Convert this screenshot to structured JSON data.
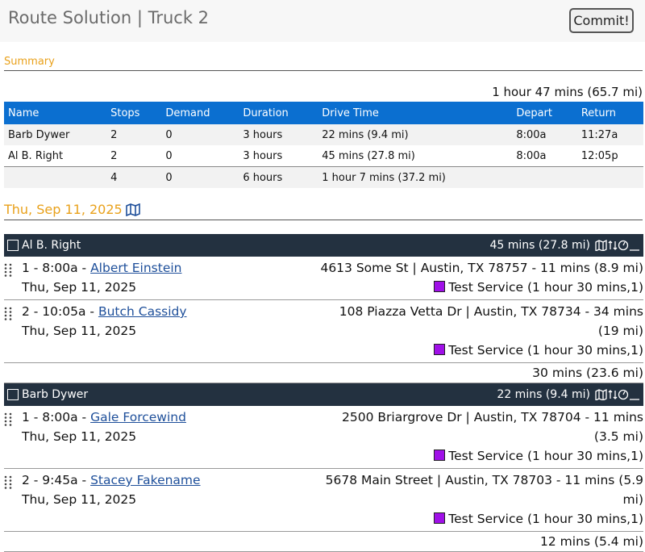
{
  "header": {
    "title": "Route Solution | Truck 2",
    "button": "Commit!"
  },
  "summary": {
    "heading": "Summary",
    "total": "1 hour 47 mins (65.7 mi)",
    "table": {
      "columns": [
        "Name",
        "Stops",
        "Demand",
        "Duration",
        "Drive Time",
        "Depart",
        "Return"
      ],
      "rows": [
        [
          "Barb Dywer",
          "2",
          "0",
          "3 hours",
          "22 mins (9.4 mi)",
          "8:00a",
          "11:27a"
        ],
        [
          "Al B. Right",
          "2",
          "0",
          "3 hours",
          "45 mins (27.8 mi)",
          "8:00a",
          "12:05p"
        ]
      ],
      "totals": {
        "stops": "4",
        "demand": "0",
        "duration": "6 hours",
        "drive_time": "1 hour 7 mins (37.2 mi)"
      }
    }
  },
  "date": "Thu, Sep 11, 2025",
  "routes": [
    {
      "driver": "Al B. Right",
      "summary": "45 mins (27.8 mi)",
      "return": "30 mins (23.6 mi)",
      "stops": [
        {
          "prefix": "1 - 8:00a -",
          "name": "Albert Einstein",
          "date": "Thu, Sep 11, 2025",
          "address": "4613 Some St | Austin, TX 78757 - 11 mins (8.9 mi)",
          "service": "Test Service (1 hour 30 mins,1)"
        },
        {
          "prefix": "2 - 10:05a -",
          "name": "Butch Cassidy",
          "date": "Thu, Sep 11, 2025",
          "address": "108 Piazza Vetta Dr | Austin, TX 78734 - 34 mins (19 mi)",
          "service": "Test Service (1 hour 30 mins,1)"
        }
      ]
    },
    {
      "driver": "Barb Dywer",
      "summary": "22 mins (9.4 mi)",
      "return": "12 mins (5.4 mi)",
      "stops": [
        {
          "prefix": "1 - 8:00a -",
          "name": "Gale Forcewind",
          "date": "Thu, Sep 11, 2025",
          "address": "2500 Briargrove Dr | Austin, TX 78704 - 11 mins (3.5 mi)",
          "service": "Test Service (1 hour 30 mins,1)"
        },
        {
          "prefix": "2 - 9:45a -",
          "name": "Stacey Fakename",
          "date": "Thu, Sep 11, 2025",
          "address": "5678 Main Street | Austin, TX 78703 - 11 mins (5.9 mi)",
          "service": "Test Service (1 hour 30 mins,1)"
        }
      ]
    }
  ]
}
